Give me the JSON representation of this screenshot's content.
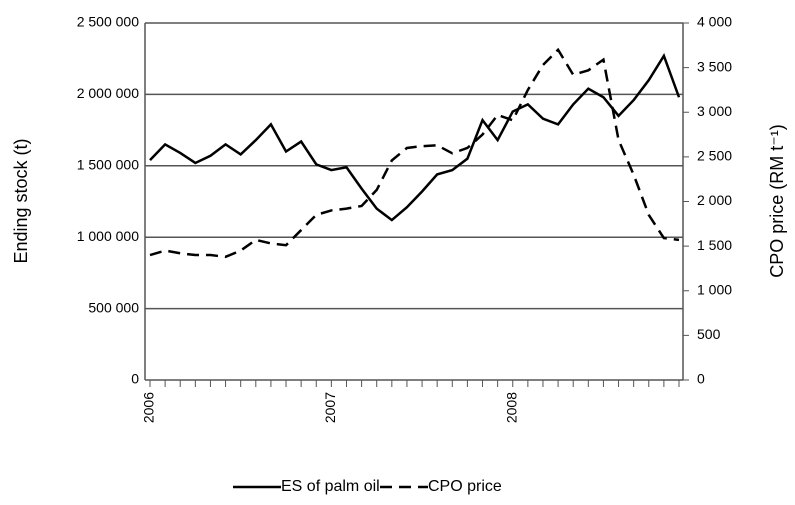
{
  "chart_data": {
    "type": "line",
    "categories": [
      "2006",
      null,
      null,
      null,
      null,
      null,
      null,
      null,
      null,
      null,
      null,
      null,
      "2007",
      null,
      null,
      null,
      null,
      null,
      null,
      null,
      null,
      null,
      null,
      null,
      "2008",
      null,
      null,
      null,
      null,
      null,
      null,
      null,
      null,
      null,
      null,
      null
    ],
    "series": [
      {
        "name": "ES of palm oil",
        "color": "#000000",
        "dash": "solid",
        "axis": "y",
        "values": [
          1540000,
          1650000,
          1590000,
          1520000,
          1570000,
          1650000,
          1580000,
          1680000,
          1790000,
          1600000,
          1670000,
          1510000,
          1470000,
          1490000,
          1340000,
          1200000,
          1120000,
          1210000,
          1320000,
          1440000,
          1470000,
          1550000,
          1820000,
          1680000,
          1880000,
          1930000,
          1830000,
          1790000,
          1930000,
          2040000,
          1980000,
          1850000,
          1960000,
          2100000,
          2270000,
          1980000
        ]
      },
      {
        "name": "CPO price",
        "color": "#000000",
        "dash": "dashed",
        "axis": "y2",
        "values": [
          1400,
          1450,
          1420,
          1400,
          1400,
          1380,
          1450,
          1570,
          1530,
          1510,
          1680,
          1850,
          1900,
          1920,
          1950,
          2130,
          2460,
          2600,
          2620,
          2630,
          2540,
          2600,
          2750,
          2970,
          2910,
          3250,
          3530,
          3700,
          3420,
          3470,
          3590,
          2690,
          2300,
          1850,
          1590,
          1570
        ]
      }
    ],
    "ylabel": "Ending stock (t)",
    "y2label": "CPO price (RM t⁻¹)",
    "ylim": [
      0,
      2500000
    ],
    "yticks": [
      0,
      {
        "value": 500000,
        "label": "500 000"
      },
      {
        "value": 1000000,
        "label": "1 000 000"
      },
      {
        "value": 1500000,
        "label": "1 500 000"
      },
      {
        "value": 2000000,
        "label": "2 000 000"
      },
      {
        "value": 2500000,
        "label": "2 500 000"
      }
    ],
    "y2lim": [
      0,
      4000
    ],
    "y2ticks": [
      0,
      500,
      {
        "value": 1000,
        "label": "1 000"
      },
      {
        "value": 1500,
        "label": "1 500"
      },
      {
        "value": 2000,
        "label": "2 000"
      },
      {
        "value": 2500,
        "label": "2 500"
      },
      {
        "value": 3000,
        "label": "3 000"
      },
      {
        "value": 3500,
        "label": "3 500"
      },
      {
        "value": 4000,
        "label": "4 000"
      }
    ],
    "grid": true,
    "legend": "bottom"
  }
}
